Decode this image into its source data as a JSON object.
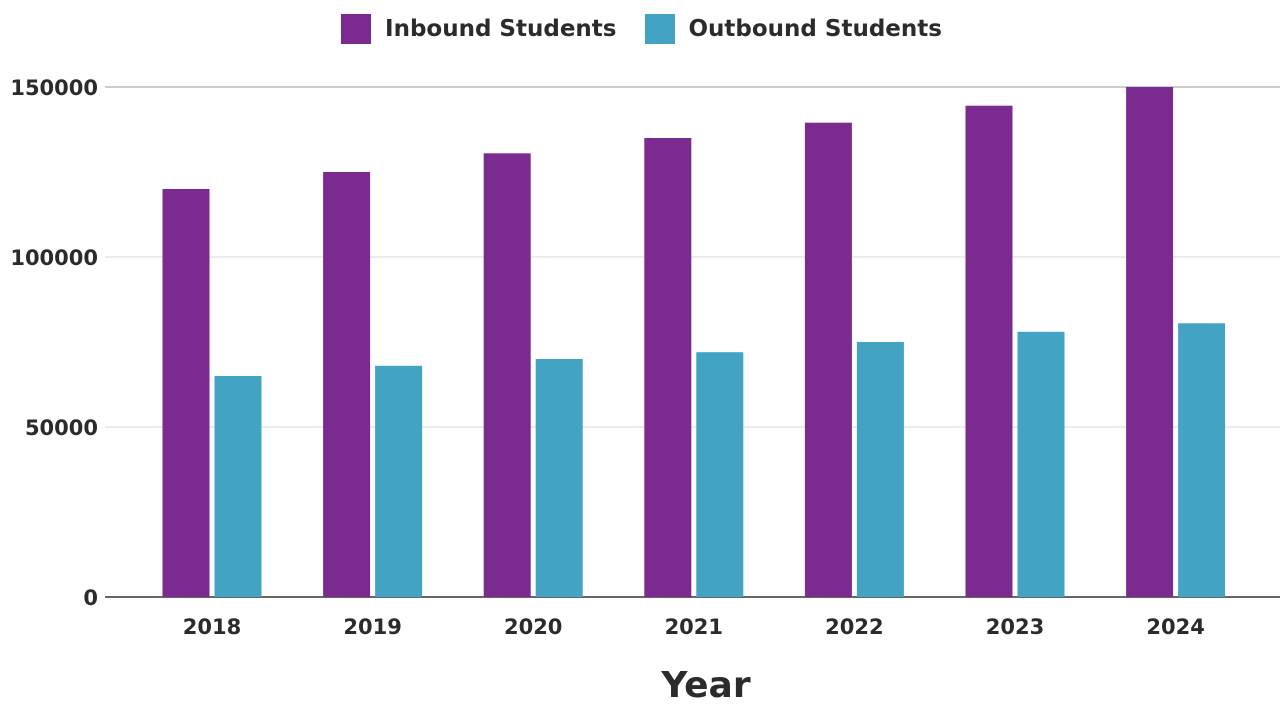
{
  "chart_data": {
    "type": "bar",
    "xlabel": "Year",
    "ylabel": "",
    "categories": [
      "2018",
      "2019",
      "2020",
      "2021",
      "2022",
      "2023",
      "2024"
    ],
    "series": [
      {
        "name": "Inbound Students",
        "color": "#7b2a8f",
        "values": [
          120000,
          125000,
          130500,
          135000,
          139500,
          144500,
          150000
        ]
      },
      {
        "name": "Outbound Students",
        "color": "#42a3c2",
        "values": [
          65000,
          68000,
          70000,
          72000,
          75000,
          78000,
          80500
        ]
      }
    ],
    "ylim": [
      0,
      150000
    ],
    "yticks": [
      "0",
      "50000",
      "100000",
      "150000"
    ],
    "grid": true,
    "legend_position": "top-center"
  }
}
